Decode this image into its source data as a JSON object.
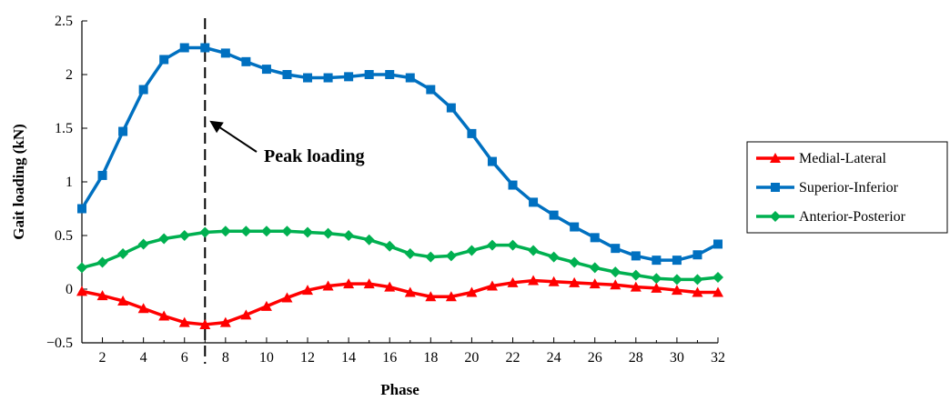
{
  "chart_data": {
    "type": "line",
    "title": "",
    "xlabel": "Phase",
    "ylabel": "Gait loading (kN)",
    "xlim": [
      1,
      32
    ],
    "ylim": [
      -0.5,
      2.5
    ],
    "x_ticks": [
      "2",
      "4",
      "6",
      "8",
      "10",
      "12",
      "14",
      "16",
      "18",
      "20",
      "22",
      "24",
      "26",
      "28",
      "30",
      "32"
    ],
    "y_ticks": [
      "−0.5",
      "0",
      "0.5",
      "1",
      "1.5",
      "2",
      "2.5"
    ],
    "grid": false,
    "legend_position": "right",
    "x": [
      1,
      2,
      3,
      4,
      5,
      6,
      7,
      8,
      9,
      10,
      11,
      12,
      13,
      14,
      15,
      16,
      17,
      18,
      19,
      20,
      21,
      22,
      23,
      24,
      25,
      26,
      27,
      28,
      29,
      30,
      31,
      32
    ],
    "series": [
      {
        "name": "Medial-Lateral",
        "marker": "triangle",
        "color": "#ff0000",
        "values": [
          -0.02,
          -0.06,
          -0.11,
          -0.18,
          -0.25,
          -0.31,
          -0.33,
          -0.31,
          -0.24,
          -0.16,
          -0.08,
          -0.01,
          0.03,
          0.05,
          0.05,
          0.02,
          -0.03,
          -0.07,
          -0.07,
          -0.03,
          0.03,
          0.06,
          0.08,
          0.07,
          0.06,
          0.05,
          0.04,
          0.02,
          0.01,
          -0.01,
          -0.03,
          -0.03
        ]
      },
      {
        "name": "Superior-Inferior",
        "marker": "square",
        "color": "#0070c0",
        "values": [
          0.75,
          1.06,
          1.47,
          1.86,
          2.14,
          2.25,
          2.25,
          2.2,
          2.12,
          2.05,
          2.0,
          1.97,
          1.97,
          1.98,
          2.0,
          2.0,
          1.97,
          1.86,
          1.69,
          1.45,
          1.19,
          0.97,
          0.81,
          0.69,
          0.58,
          0.48,
          0.38,
          0.31,
          0.27,
          0.27,
          0.32,
          0.42
        ]
      },
      {
        "name": "Anterior-Posterior",
        "marker": "diamond",
        "color": "#00b050",
        "values": [
          0.2,
          0.25,
          0.33,
          0.42,
          0.47,
          0.5,
          0.53,
          0.54,
          0.54,
          0.54,
          0.54,
          0.53,
          0.52,
          0.5,
          0.46,
          0.4,
          0.33,
          0.3,
          0.31,
          0.36,
          0.41,
          0.41,
          0.36,
          0.3,
          0.25,
          0.2,
          0.16,
          0.13,
          0.1,
          0.09,
          0.09,
          0.11
        ]
      }
    ],
    "annotations": [
      {
        "text": "Peak loading",
        "points_to": {
          "x": 7,
          "y": 1.57
        }
      }
    ],
    "vline": {
      "x": 7,
      "style": "dashed"
    }
  }
}
